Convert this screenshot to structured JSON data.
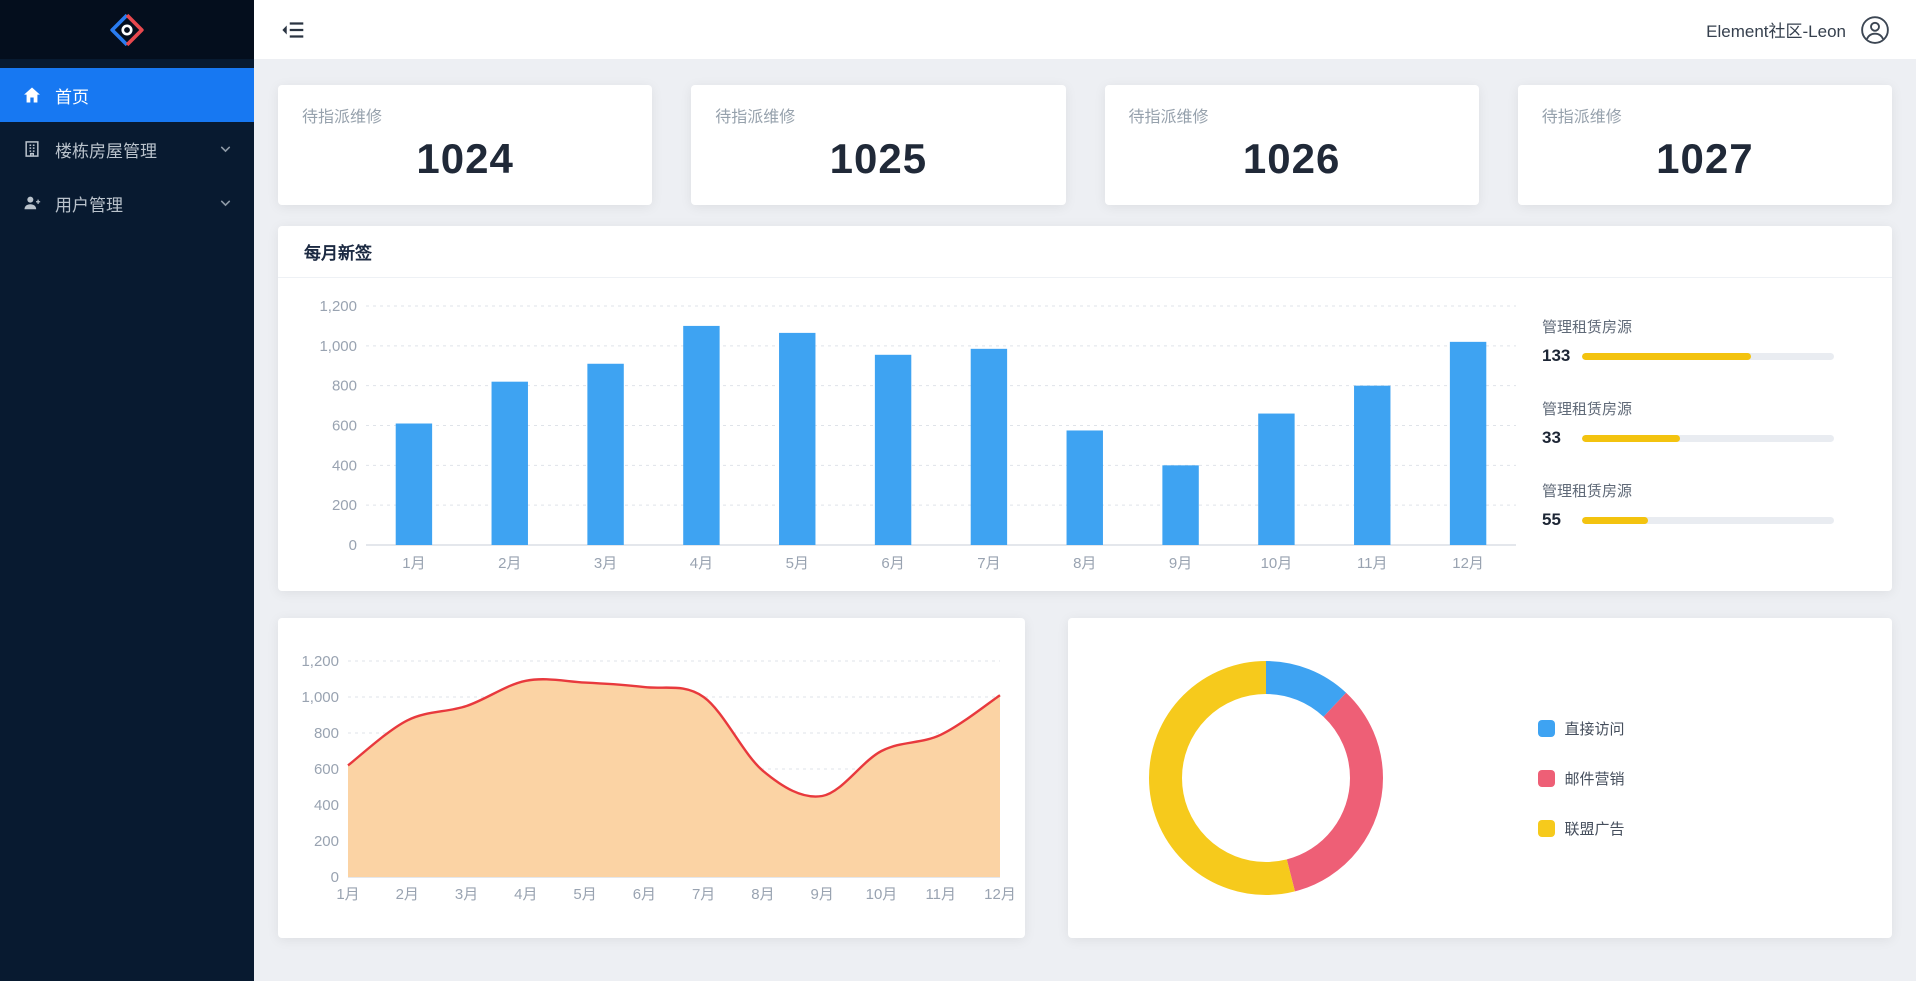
{
  "header": {
    "username": "Element社区-Leon"
  },
  "sidebar": {
    "items": [
      {
        "label": "首页",
        "icon": "home-icon",
        "active": true
      },
      {
        "label": "楼栋房屋管理",
        "icon": "building-icon",
        "expandable": true
      },
      {
        "label": "用户管理",
        "icon": "user-add-icon",
        "expandable": true
      }
    ]
  },
  "stats": [
    {
      "title": "待指派维修",
      "value": "1024"
    },
    {
      "title": "待指派维修",
      "value": "1025"
    },
    {
      "title": "待指派维修",
      "value": "1026"
    },
    {
      "title": "待指派维修",
      "value": "1027"
    }
  ],
  "monthly_panel": {
    "title": "每月新签"
  },
  "progress_items": [
    {
      "label": "管理租赁房源",
      "value": "133",
      "percent": 67
    },
    {
      "label": "管理租赁房源",
      "value": "33",
      "percent": 39
    },
    {
      "label": "管理租赁房源",
      "value": "55",
      "percent": 26
    }
  ],
  "chart_data": [
    {
      "type": "bar",
      "title": "每月新签",
      "categories": [
        "1月",
        "2月",
        "3月",
        "4月",
        "5月",
        "6月",
        "7月",
        "8月",
        "9月",
        "10月",
        "11月",
        "12月"
      ],
      "values": [
        610,
        820,
        910,
        1100,
        1065,
        955,
        985,
        575,
        400,
        660,
        800,
        1020
      ],
      "ylim": [
        0,
        1200
      ],
      "yticks": [
        0,
        200,
        400,
        600,
        800,
        1000,
        1200
      ],
      "xlabel": "",
      "ylabel": "",
      "grid": true,
      "color": "#3ea3f2"
    },
    {
      "type": "area",
      "categories": [
        "1月",
        "2月",
        "3月",
        "4月",
        "5月",
        "6月",
        "7月",
        "8月",
        "9月",
        "10月",
        "11月",
        "12月"
      ],
      "values": [
        620,
        870,
        950,
        1090,
        1080,
        1055,
        1000,
        590,
        450,
        700,
        790,
        1010
      ],
      "ylim": [
        0,
        1200
      ],
      "yticks": [
        0,
        200,
        400,
        600,
        800,
        1000,
        1200
      ],
      "xlabel": "",
      "ylabel": "",
      "grid": true,
      "line_color": "#e8393d",
      "fill_color": "#fbd3a4"
    },
    {
      "type": "pie",
      "donut": true,
      "labels": [
        "直接访问",
        "邮件营销",
        "联盟广告"
      ],
      "values": [
        12,
        34,
        54
      ],
      "colors": [
        "#3ea3f2",
        "#ee5f76",
        "#f6ca1c"
      ],
      "legend_position": "right"
    }
  ],
  "colors": {
    "sidebar_bg": "#081a30",
    "active_item": "#1778f2",
    "bar": "#3ea3f2",
    "progress": "#f3c30f",
    "area_line": "#e8393d",
    "area_fill": "#fbd3a4",
    "donut_blue": "#3ea3f2",
    "donut_pink": "#ee5f76",
    "donut_yellow": "#f6ca1c"
  }
}
